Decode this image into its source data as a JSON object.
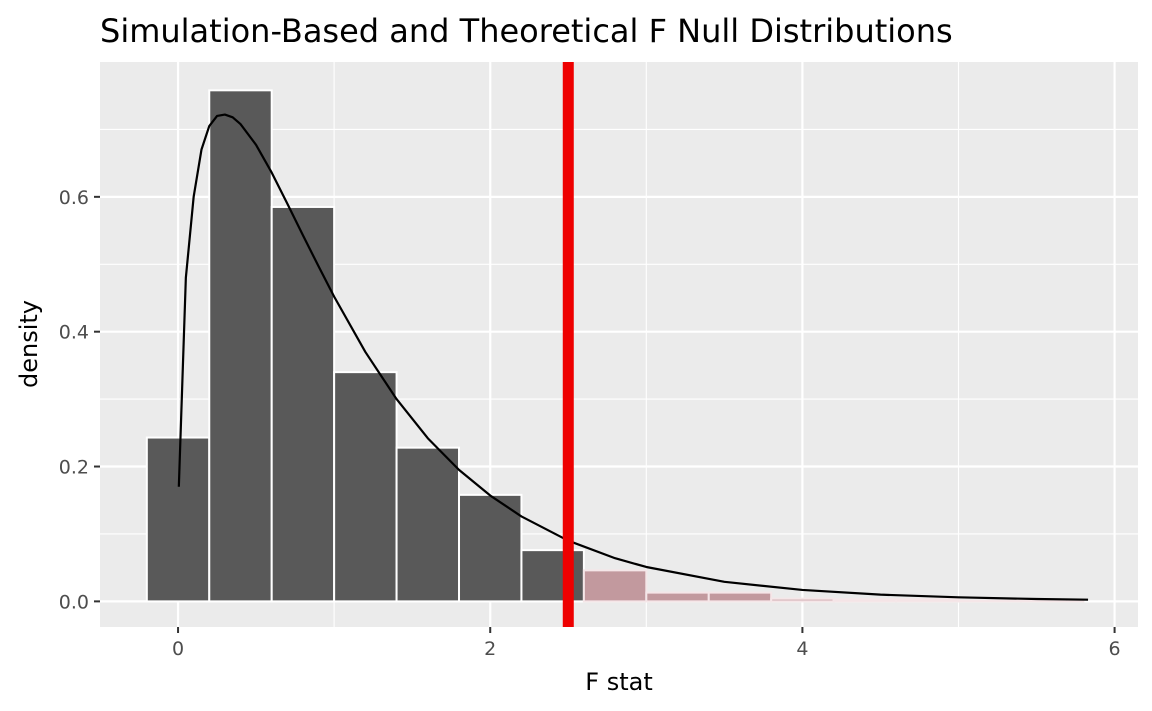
{
  "chart_data": {
    "type": "bar",
    "title": "Simulation-Based and Theoretical F Null Distributions",
    "xlabel": "F stat",
    "ylabel": "density",
    "xlim": [
      -0.5,
      6.15
    ],
    "ylim": [
      -0.038,
      0.8
    ],
    "x_ticks": [
      0,
      2,
      4,
      6
    ],
    "y_ticks": [
      0.0,
      0.2,
      0.4,
      0.6
    ],
    "x_tick_labels": [
      "0",
      "2",
      "4",
      "6"
    ],
    "y_tick_labels": [
      "0.0",
      "0.2",
      "0.4",
      "0.6"
    ],
    "grid": true,
    "observed_statistic": 2.5,
    "histogram": {
      "bin_width": 0.4,
      "bins": [
        {
          "x0": -0.2,
          "x1": 0.2,
          "density": 0.243,
          "shaded": false
        },
        {
          "x0": 0.2,
          "x1": 0.6,
          "density": 0.758,
          "shaded": false
        },
        {
          "x0": 0.6,
          "x1": 1.0,
          "density": 0.585,
          "shaded": false
        },
        {
          "x0": 1.0,
          "x1": 1.4,
          "density": 0.34,
          "shaded": false
        },
        {
          "x0": 1.4,
          "x1": 1.8,
          "density": 0.228,
          "shaded": false
        },
        {
          "x0": 1.8,
          "x1": 2.2,
          "density": 0.158,
          "shaded": false
        },
        {
          "x0": 2.2,
          "x1": 2.6,
          "density": 0.076,
          "shaded": false
        },
        {
          "x0": 2.6,
          "x1": 3.0,
          "density": 0.046,
          "shaded": true
        },
        {
          "x0": 3.0,
          "x1": 3.4,
          "density": 0.013,
          "shaded": true
        },
        {
          "x0": 3.4,
          "x1": 3.8,
          "density": 0.013,
          "shaded": true
        },
        {
          "x0": 3.8,
          "x1": 4.2,
          "density": 0.004,
          "shaded": true
        },
        {
          "x0": 4.2,
          "x1": 4.6,
          "density": 0.003,
          "shaded": true
        },
        {
          "x0": 4.6,
          "x1": 5.0,
          "density": 0.003,
          "shaded": true
        },
        {
          "x0": 5.0,
          "x1": 5.4,
          "density": 0.001,
          "shaded": true
        },
        {
          "x0": 5.4,
          "x1": 5.8,
          "density": 0.001,
          "shaded": true
        }
      ]
    },
    "theoretical_curve": {
      "x": [
        0.005,
        0.05,
        0.1,
        0.15,
        0.2,
        0.25,
        0.3,
        0.35,
        0.4,
        0.5,
        0.6,
        0.7,
        0.8,
        0.9,
        1.0,
        1.2,
        1.4,
        1.6,
        1.8,
        2.0,
        2.2,
        2.5,
        2.8,
        3.0,
        3.5,
        4.0,
        4.5,
        5.0,
        5.5,
        5.83
      ],
      "y": [
        0.17,
        0.48,
        0.6,
        0.67,
        0.705,
        0.72,
        0.722,
        0.718,
        0.708,
        0.677,
        0.636,
        0.59,
        0.543,
        0.497,
        0.452,
        0.37,
        0.3,
        0.242,
        0.195,
        0.157,
        0.126,
        0.09,
        0.064,
        0.051,
        0.029,
        0.017,
        0.01,
        0.006,
        0.0035,
        0.0025
      ]
    },
    "colors": {
      "panel_background": "#ebebeb",
      "grid_line": "#ffffff",
      "bar_fill": "#595959",
      "bar_outline": "#ffffff",
      "shaded_fill": "#c2999e",
      "shaded_outline": "#f5e6e8",
      "curve": "#000000",
      "observed_line": "#ee0000",
      "tick_mark": "#333333"
    }
  }
}
